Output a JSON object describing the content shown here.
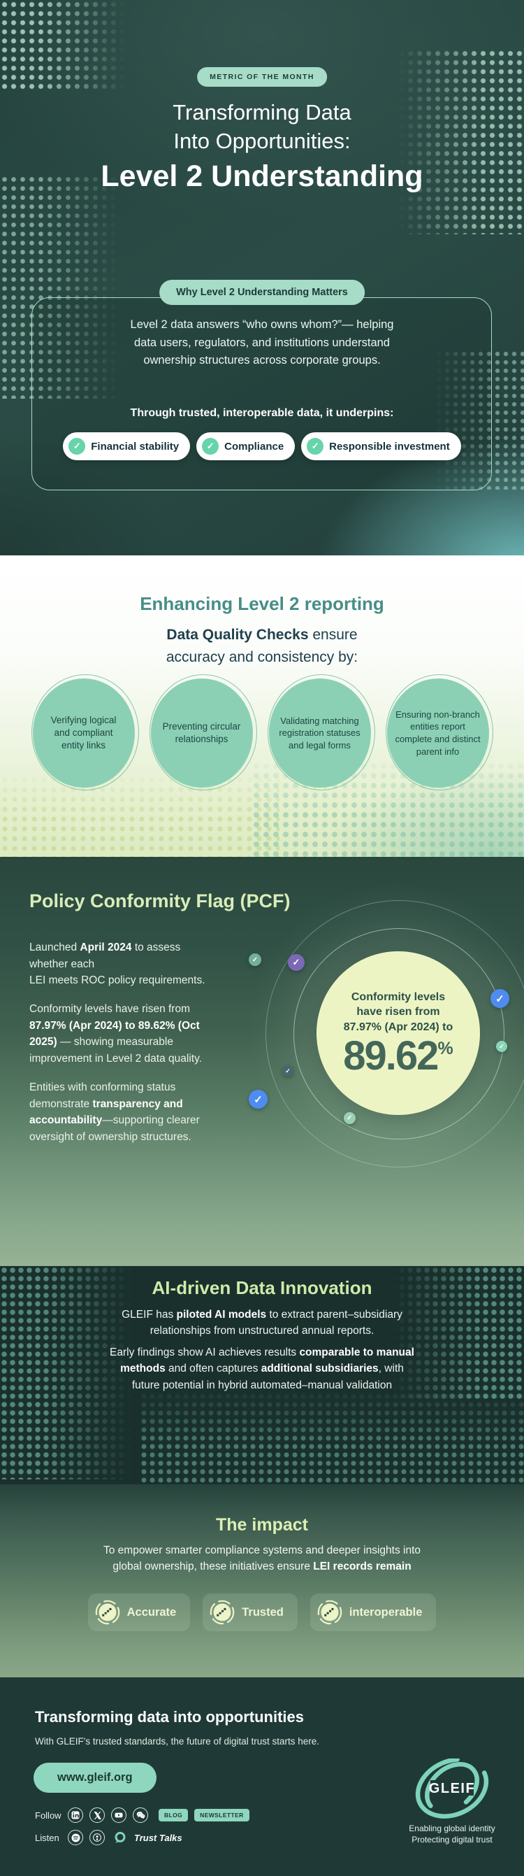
{
  "colors": {
    "mint": "#a6dcc8",
    "pale_green": "#dcefb4",
    "stat_yellow": "#edf4c4",
    "blue": "#4e8cf1",
    "purple": "#7b68b6",
    "dark_teal": "#1f3a36",
    "check_green": "#67d4ab"
  },
  "hero": {
    "badge": "METRIC OF THE MONTH",
    "title_line1": "Transforming Data",
    "title_line2": "Into Opportunities:",
    "title_line3": "Level 2 Understanding",
    "box_badge": "Why Level 2 Understanding Matters",
    "box_text": "Level 2 data answers “who owns whom?”— helping\ndata users, regulators, and institutions understand\nownership structures across corporate groups.",
    "underpin_label": "Through trusted, interoperable data, it underpins:",
    "pills": [
      "Financial stability",
      "Compliance",
      "Responsible investment"
    ]
  },
  "quality": {
    "title": "Enhancing Level 2 reporting",
    "subtitle": [
      {
        "t": "Data Quality Checks",
        "b": true
      },
      {
        "t": " ensure\naccuracy and consistency by:"
      }
    ],
    "circles": [
      "Verifying logical and compliant entity links",
      "Preventing circular relationships",
      "Validating matching registration statuses and legal forms",
      "Ensuring non-branch entities report complete and distinct parent info"
    ]
  },
  "pcf": {
    "title": "Policy Conformity Flag (PCF)",
    "p1": [
      {
        "t": "Launched "
      },
      {
        "t": "April 2024",
        "b": true
      },
      {
        "t": " to assess\nwhether each\nLEI meets ROC policy requirements."
      }
    ],
    "p2": [
      {
        "t": "Conformity levels have risen from\n"
      },
      {
        "t": "87.97% (Apr 2024) to 89.62% (Oct\n2025)",
        "b": true
      },
      {
        "t": " — showing measurable\nimprovement in Level 2 data quality."
      }
    ],
    "p3": [
      {
        "t": "Entities with conforming status\ndemonstrate "
      },
      {
        "t": "transparency and\naccountability",
        "b": true
      },
      {
        "t": "—supporting clearer\noversight of ownership structures."
      }
    ],
    "stat_lead": "Conformity levels\nhave risen from\n87.97% (Apr 2024) to",
    "stat_value": "89.62",
    "stat_unit": "%"
  },
  "ai": {
    "title": "AI-driven Data Innovation",
    "p1": [
      {
        "t": "GLEIF has "
      },
      {
        "t": "piloted AI models",
        "b": true
      },
      {
        "t": " to extract parent–subsidiary\nrelationships from unstructured annual reports."
      }
    ],
    "p2": [
      {
        "t": "Early findings show AI achieves results "
      },
      {
        "t": "comparable to manual\nmethods",
        "b": true
      },
      {
        "t": " and often captures "
      },
      {
        "t": "additional subsidiaries",
        "b": true
      },
      {
        "t": ", with\nfuture potential in hybrid automated–manual validation"
      }
    ]
  },
  "impact": {
    "title": "The impact",
    "text": [
      {
        "t": "To empower smarter compliance systems and deeper insights into\nglobal ownership, these initiatives ensure "
      },
      {
        "t": "LEI records remain",
        "b": true
      }
    ],
    "cards": [
      "Accurate",
      "Trusted",
      "interoperable"
    ]
  },
  "footer": {
    "heading": "Transforming data into opportunities",
    "subheading": "With GLEIF's trusted standards, the future of digital trust starts here.",
    "url": "www.gleif.org",
    "follow_label": "Follow",
    "listen_label": "Listen",
    "blog": "BLOG",
    "newsletter": "NEWSLETTER",
    "trust_talks": "Trust Talks",
    "logo_text": "GLEIF",
    "tagline": "Enabling global identity\nProtecting digital trust"
  }
}
